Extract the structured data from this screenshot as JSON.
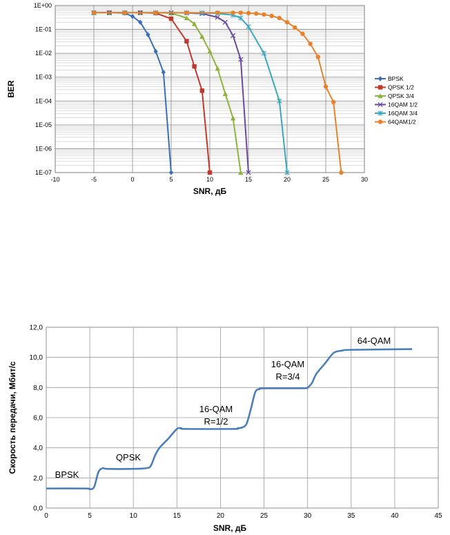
{
  "chart_data": [
    {
      "type": "line",
      "title": "",
      "xlabel": "SNR, дБ",
      "ylabel": "BER",
      "y_scale": "log",
      "xlim": [
        -10,
        30
      ],
      "ylim": [
        1e-07,
        1
      ],
      "x_ticks": [
        "-10",
        "-5",
        "0",
        "5",
        "10",
        "15",
        "20",
        "25",
        "30"
      ],
      "y_ticks": [
        "1E+00",
        "1E-01",
        "1E-02",
        "1E-03",
        "1E-04",
        "1E-05",
        "1E-06",
        "1E-07"
      ],
      "grid": true,
      "legend_position": "right",
      "series": [
        {
          "name": "BPSK",
          "color": "#3a6eb5",
          "marker": "diamond",
          "x": [
            -5,
            -3,
            -1,
            0,
            1,
            2,
            3,
            4,
            5
          ],
          "y": [
            0.5,
            0.5,
            0.48,
            0.35,
            0.2,
            0.06,
            0.012,
            0.0016,
            1e-07
          ]
        },
        {
          "name": "QPSK 1/2",
          "color": "#c0392b",
          "marker": "square",
          "x": [
            -5,
            -3,
            -1,
            1,
            3,
            5,
            7,
            8,
            9,
            10
          ],
          "y": [
            0.5,
            0.5,
            0.5,
            0.5,
            0.48,
            0.28,
            0.032,
            0.0028,
            0.00027,
            1e-07
          ]
        },
        {
          "name": "QPSK 3/4",
          "color": "#8db33a",
          "marker": "triangle",
          "x": [
            -5,
            -3,
            -1,
            1,
            3,
            5,
            7,
            8,
            9,
            10,
            11,
            12,
            13,
            14
          ],
          "y": [
            0.5,
            0.5,
            0.5,
            0.5,
            0.5,
            0.48,
            0.3,
            0.17,
            0.05,
            0.012,
            0.0023,
            0.0002,
            1.9e-05,
            1e-07
          ]
        },
        {
          "name": "16QAM 1/2",
          "color": "#6a4a9c",
          "marker": "x",
          "x": [
            -5,
            -3,
            -1,
            1,
            3,
            5,
            7,
            9,
            11,
            12,
            13,
            14,
            15
          ],
          "y": [
            0.5,
            0.5,
            0.5,
            0.5,
            0.5,
            0.5,
            0.49,
            0.46,
            0.32,
            0.2,
            0.055,
            0.0055,
            1e-07
          ]
        },
        {
          "name": "16QAM 3/4",
          "color": "#38a8c0",
          "marker": "star",
          "x": [
            -5,
            -1,
            3,
            7,
            9,
            11,
            13,
            14,
            15,
            17,
            19,
            20
          ],
          "y": [
            0.5,
            0.5,
            0.5,
            0.5,
            0.49,
            0.47,
            0.4,
            0.3,
            0.13,
            0.01,
            0.0001,
            1e-07
          ]
        },
        {
          "name": "64QAM1/2",
          "color": "#e8822a",
          "marker": "circle",
          "x": [
            -5,
            -1,
            3,
            7,
            11,
            13,
            14,
            15,
            16,
            17,
            18,
            19,
            20,
            21,
            22,
            23,
            24,
            25,
            26,
            27
          ],
          "y": [
            0.5,
            0.5,
            0.5,
            0.5,
            0.5,
            0.5,
            0.5,
            0.48,
            0.46,
            0.42,
            0.37,
            0.3,
            0.2,
            0.12,
            0.065,
            0.025,
            0.007,
            0.0004,
            9e-05,
            1e-07
          ]
        }
      ]
    },
    {
      "type": "line",
      "title": "",
      "xlabel": "SNR, дБ",
      "ylabel": "Скорость передачи, Мбит/с",
      "xlim": [
        0,
        45
      ],
      "ylim": [
        0,
        12
      ],
      "x_ticks": [
        "0",
        "5",
        "10",
        "15",
        "20",
        "25",
        "30",
        "35",
        "40",
        "45"
      ],
      "y_ticks": [
        "0,0",
        "2,0",
        "4,0",
        "6,0",
        "8,0",
        "10,0",
        "12,0"
      ],
      "grid": true,
      "series": [
        {
          "color": "#4a7ebb",
          "x": [
            0,
            4.5,
            5,
            5.5,
            6,
            6.5,
            7,
            10,
            11.5,
            12,
            12.5,
            13,
            14,
            15,
            15.5,
            16,
            21.5,
            22,
            22.5,
            23,
            23.5,
            24,
            24.5,
            25,
            29.5,
            30,
            30.5,
            31,
            32,
            33,
            34,
            35,
            42
          ],
          "y": [
            1.3,
            1.3,
            1.25,
            1.4,
            2.4,
            2.65,
            2.6,
            2.6,
            2.65,
            2.8,
            3.5,
            4.0,
            4.6,
            5.25,
            5.3,
            5.25,
            5.25,
            5.3,
            5.35,
            5.6,
            6.6,
            7.7,
            7.9,
            7.95,
            7.95,
            8.0,
            8.3,
            8.9,
            9.6,
            10.3,
            10.45,
            10.5,
            10.55
          ]
        }
      ],
      "annotations": [
        {
          "text": "BPSK"
        },
        {
          "text": "QPSK"
        },
        {
          "text": "16-QAM"
        },
        {
          "text": "R=1/2"
        },
        {
          "text": "16-QAM"
        },
        {
          "text": "R=3/4"
        },
        {
          "text": "64-QAM"
        }
      ]
    }
  ]
}
